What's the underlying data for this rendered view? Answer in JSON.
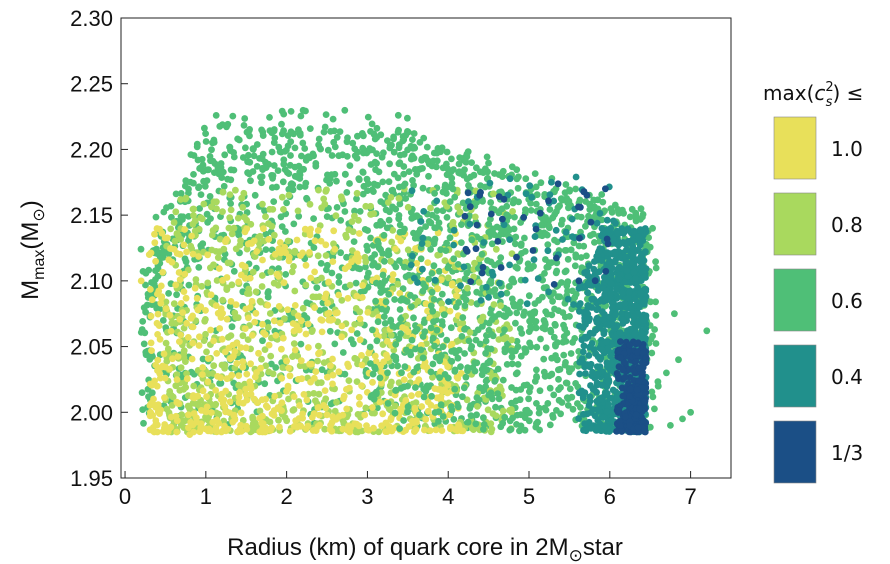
{
  "chart_data": {
    "type": "scatter",
    "xlabel_main": "Radius (km) of quark core in 2M",
    "xlabel_sub": "⊙",
    "xlabel_tail": "star",
    "ylabel_main": "M",
    "ylabel_sub": "max",
    "ylabel_mid": "(M",
    "ylabel_sub2": "⊙",
    "ylabel_tail": ")",
    "xlim": [
      -0.05,
      7.5
    ],
    "ylim": [
      1.95,
      2.3
    ],
    "x_ticks": [
      "0",
      "1",
      "2",
      "3",
      "4",
      "5",
      "6",
      "7"
    ],
    "y_ticks": [
      "1.95",
      "2.00",
      "2.05",
      "2.10",
      "2.15",
      "2.20",
      "2.25",
      "2.30"
    ],
    "grid": false,
    "legend_position": "right",
    "legend": {
      "title_prefix": "max(",
      "title_c": "c",
      "title_sup": "2",
      "title_sub": "s",
      "title_suffix": ") ≤",
      "entries": [
        {
          "label": "1.0",
          "color": "#e8e05a"
        },
        {
          "label": "0.8",
          "color": "#a9d95e"
        },
        {
          "label": "0.6",
          "color": "#4fbf77"
        },
        {
          "label": "0.4",
          "color": "#21908c"
        },
        {
          "label": "1/3",
          "color": "#1b4f86"
        }
      ]
    },
    "series": [
      {
        "name": "1.0",
        "color": "#e8e05a",
        "x_range": [
          0.2,
          4.3
        ],
        "y_range": [
          1.985,
          2.2
        ]
      },
      {
        "name": "0.8",
        "color": "#a9d95e",
        "x_range": [
          0.5,
          5.0
        ],
        "y_range": [
          1.985,
          2.25
        ]
      },
      {
        "name": "0.6",
        "color": "#4fbf77",
        "x_range": [
          0.15,
          7.2
        ],
        "y_range": [
          1.985,
          2.24
        ]
      },
      {
        "name": "0.4",
        "color": "#21908c",
        "x_range": [
          3.0,
          6.5
        ],
        "y_range": [
          1.985,
          2.2
        ]
      },
      {
        "name": "1/3",
        "color": "#1b4f86",
        "x_range": [
          6.0,
          6.5
        ],
        "y_range": [
          1.985,
          2.07
        ]
      }
    ]
  }
}
